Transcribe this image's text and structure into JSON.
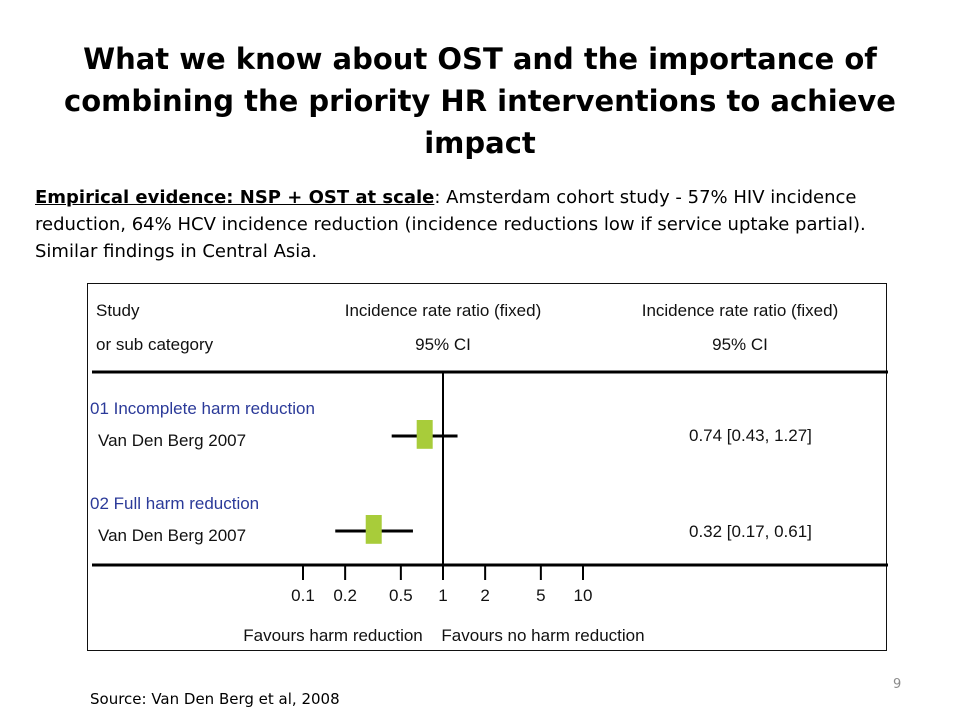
{
  "slide": {
    "title_line1": "What we know about OST and the importance of",
    "title_line2": "combining the priority HR interventions to achieve impact",
    "evidence_lead": "Empirical evidence: NSP + OST at scale",
    "evidence_body": ": Amsterdam cohort study - 57% HIV incidence reduction, 64% HCV incidence reduction (incidence reductions low if service uptake partial).  Similar findings in Central Asia.",
    "source": "Source: Van Den Berg et al, 2008",
    "page_number": "9"
  },
  "chart_data": {
    "type": "forest",
    "header": {
      "study_line1": "Study",
      "study_line2": "or sub category",
      "ratio_line1": "Incidence rate ratio (fixed)",
      "ratio_line2": "95% CI",
      "ratio_col_line1": "Incidence rate ratio (fixed)",
      "ratio_col_line2": "95% CI"
    },
    "groups": [
      {
        "label": "01 Incomplete harm reduction",
        "study": "Van Den Berg 2007",
        "estimate": 0.74,
        "ci_low": 0.43,
        "ci_high": 1.27,
        "ci_text": "0.74 [0.43, 1.27]"
      },
      {
        "label": "02 Full harm reduction",
        "study": "Van Den Berg 2007",
        "estimate": 0.32,
        "ci_low": 0.17,
        "ci_high": 0.61,
        "ci_text": "0.32 [0.17, 0.61]"
      }
    ],
    "x_axis": {
      "scale": "log",
      "ticks": [
        0.1,
        0.2,
        0.5,
        1,
        2,
        5,
        10
      ],
      "tick_labels": [
        "0.1",
        "0.2",
        "0.5",
        "1",
        "2",
        "5",
        "10"
      ],
      "range": [
        0.1,
        10
      ],
      "reference_line": 1
    },
    "favours_left": "Favours harm reduction",
    "favours_right": "Favours no harm reduction",
    "colors": {
      "marker": "#a8cc3a",
      "group_label": "#2b3a99",
      "line": "#000000"
    }
  }
}
